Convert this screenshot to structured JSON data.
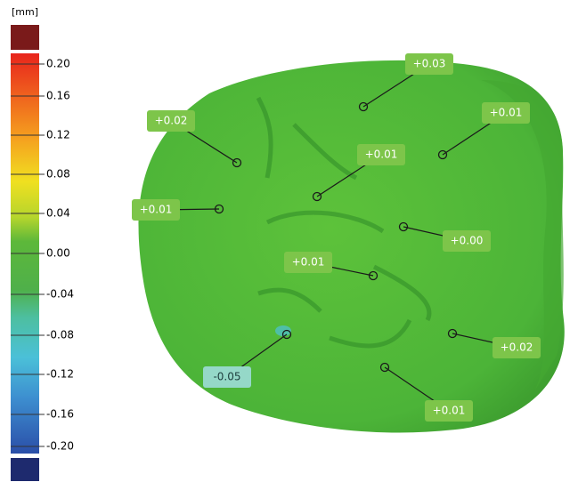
{
  "scale": {
    "unit": "[mm]",
    "labels": [
      "0.20",
      "0.16",
      "0.12",
      "0.08",
      "0.04",
      "0.00",
      "-0.04",
      "-0.08",
      "-0.12",
      "-0.16",
      "-0.20"
    ]
  },
  "annotations": [
    "+0.03",
    "+0.02",
    "+0.01",
    "+0.01",
    "+0.01",
    "+0.00",
    "+0.01",
    "-0.05",
    "+0.02",
    "+0.01"
  ]
}
